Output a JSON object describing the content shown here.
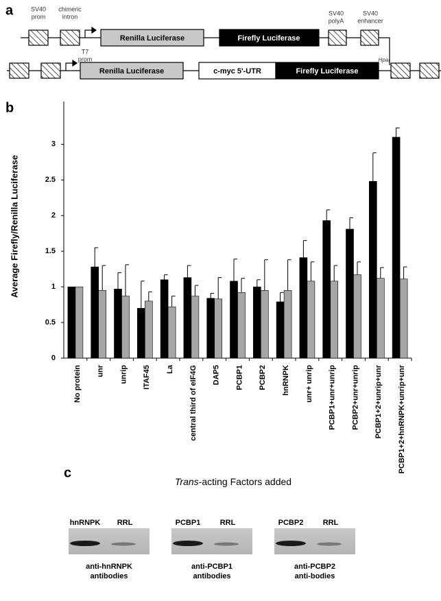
{
  "panel_labels": [
    "a",
    "b",
    "c"
  ],
  "construct_1": {
    "labels": {
      "sv40_prom": [
        "SV40",
        "prom"
      ],
      "chimeric_intron": [
        "chimeric",
        "intron"
      ],
      "t7_prom": [
        "T7",
        "prom"
      ],
      "sv40_polya": [
        "SV40",
        "polyA"
      ],
      "sv40_enhancer": [
        "SV40",
        "enhancer"
      ],
      "hpai": "HpaI"
    },
    "renilla": "Renilla Luciferase",
    "firefly": "Firefly Luciferase"
  },
  "construct_2": {
    "renilla": "Renilla Luciferase",
    "utr": "c-myc 5'-UTR",
    "firefly": "Firefly Luciferase"
  },
  "chart_data": {
    "type": "bar",
    "ylabel": "Average Firefly/Renilla Luciferase",
    "categories": [
      "No protein",
      "unr",
      "unrip",
      "ITAF45",
      "La",
      "central third of eIF4G",
      "DAP5",
      "PCBP1",
      "PCBP2",
      "hnRNPK",
      "unr+ unrip",
      "PCBP1+unr+unrip",
      "PCBP2+unr+unrip",
      "PCBP1+2+unrip+unr",
      "PCBP1+2+hnRNPK+unrip+unr"
    ],
    "series": [
      {
        "color": "#000000",
        "values": [
          1,
          1.28,
          0.97,
          0.7,
          1.1,
          1.13,
          0.84,
          1.08,
          1.0,
          0.79,
          1.41,
          1.93,
          1.81,
          2.48,
          3.1
        ],
        "errors": [
          null,
          0.27,
          0.23,
          0.38,
          0.07,
          0.17,
          0.07,
          0.31,
          0.1,
          0.13,
          0.24,
          0.15,
          0.16,
          0.4,
          0.13
        ]
      },
      {
        "color": "#a6a6a6",
        "values": [
          1,
          0.95,
          0.87,
          0.8,
          0.72,
          0.87,
          0.83,
          0.92,
          0.95,
          0.95,
          1.08,
          1.08,
          1.17,
          1.12,
          1.11
        ],
        "errors": [
          null,
          0.35,
          0.44,
          0.13,
          0.15,
          0.15,
          0.3,
          0.2,
          0.43,
          0.43,
          0.27,
          0.22,
          0.18,
          0.15,
          0.17
        ]
      }
    ],
    "ylim": [
      0,
      3.6
    ],
    "yticks": [
      0,
      0.5,
      1,
      1.5,
      2,
      2.5,
      3
    ],
    "grid": false
  },
  "panel_c": {
    "title_italic": "Trans",
    "title_rest": "-acting Factors added",
    "blots": [
      {
        "lanes": [
          "hnRNPK",
          "RRL"
        ],
        "caption": [
          "anti-hnRNPK",
          "antibodies"
        ]
      },
      {
        "lanes": [
          "PCBP1",
          "RRL"
        ],
        "caption": [
          "anti-PCBP1",
          "antibodies"
        ]
      },
      {
        "lanes": [
          "PCBP2",
          "RRL"
        ],
        "caption": [
          "anti-PCBP2",
          "anti-bodies"
        ]
      }
    ]
  }
}
